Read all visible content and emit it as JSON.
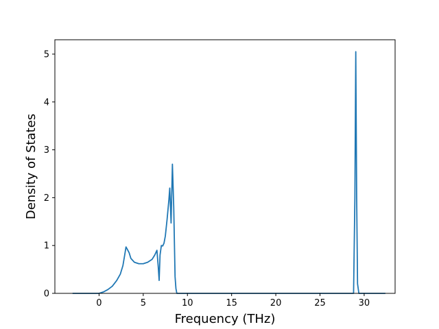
{
  "chart_data": {
    "type": "line",
    "title": "",
    "xlabel": "Frequency (THz)",
    "ylabel": "Density of States",
    "xlim": [
      -5,
      33.5
    ],
    "ylim": [
      0,
      5.3
    ],
    "xticks": [
      0,
      5,
      10,
      15,
      20,
      25,
      30
    ],
    "yticks": [
      0,
      1,
      2,
      3,
      4,
      5
    ],
    "grid": false,
    "line_color": "#1f77b4",
    "series": [
      {
        "x": [
          -3.0,
          -1.0,
          0.0,
          0.5,
          1.0,
          1.5,
          2.0,
          2.4,
          2.7,
          2.9,
          3.05,
          3.2,
          3.4,
          3.6,
          4.0,
          4.5,
          5.0,
          5.5,
          6.0,
          6.3,
          6.55,
          6.7,
          6.8,
          6.9,
          7.05,
          7.2,
          7.35,
          7.5,
          7.7,
          7.9,
          8.0,
          8.15,
          8.3,
          8.45,
          8.6,
          8.7,
          8.8,
          9.0,
          10.0,
          20.0,
          28.6,
          28.8,
          28.95,
          29.05,
          29.15,
          29.25,
          29.4,
          29.6,
          30.5,
          32.4
        ],
        "y": [
          0,
          0,
          0.0,
          0.03,
          0.08,
          0.15,
          0.27,
          0.4,
          0.58,
          0.8,
          0.97,
          0.92,
          0.85,
          0.73,
          0.65,
          0.62,
          0.62,
          0.65,
          0.71,
          0.8,
          0.9,
          0.55,
          0.27,
          0.8,
          1.0,
          0.99,
          1.05,
          1.2,
          1.55,
          1.95,
          2.2,
          1.47,
          2.7,
          1.8,
          0.35,
          0.1,
          0.0,
          0.0,
          0.0,
          0.0,
          0.0,
          0.0,
          2.0,
          5.05,
          2.0,
          0.2,
          0.0,
          0.0,
          0.0,
          0.0
        ]
      }
    ]
  }
}
